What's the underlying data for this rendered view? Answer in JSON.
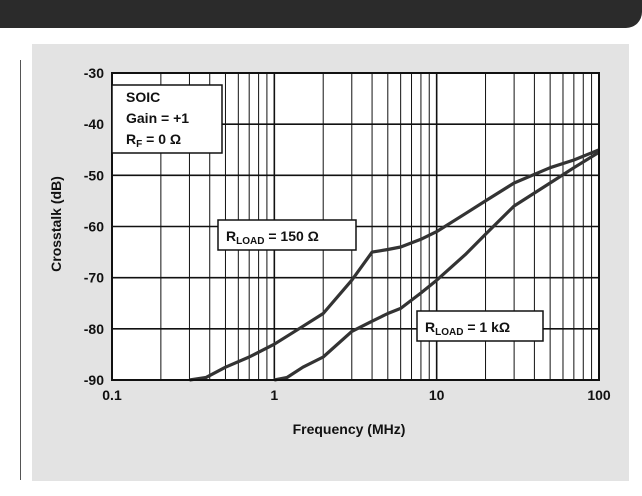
{
  "chart_data": {
    "type": "line",
    "xlabel": "Frequency (MHz)",
    "ylabel": "Crosstalk (dB)",
    "x_scale": "log",
    "xlim": [
      0.1,
      100
    ],
    "ylim": [
      -90,
      -30
    ],
    "x_ticks": [
      "0.1",
      "1",
      "10",
      "100"
    ],
    "y_ticks": [
      "-30",
      "-40",
      "-50",
      "-60",
      "-70",
      "-80",
      "-90"
    ],
    "grid": true,
    "annotation": {
      "line1": "SOIC",
      "line2": "Gain = +1",
      "line3_main": "R",
      "line3_sub": "F",
      "line3_rest": " = 0 Ω"
    },
    "series": [
      {
        "label_main": "R",
        "label_sub": "LOAD",
        "label_rest": " = 150 Ω",
        "color": "#333333",
        "x": [
          0.3,
          0.38,
          0.5,
          0.7,
          1.0,
          1.5,
          2.0,
          3.0,
          4.0,
          5.0,
          6.0,
          8.0,
          10,
          15,
          20,
          30,
          50,
          70,
          100
        ],
        "y": [
          -90,
          -89.5,
          -87.5,
          -85.5,
          -83,
          -79.5,
          -77,
          -70.5,
          -65,
          -64.5,
          -64,
          -62.5,
          -61,
          -57.5,
          -55,
          -51.5,
          -48.5,
          -47,
          -45
        ]
      },
      {
        "label_main": "R",
        "label_sub": "LOAD",
        "label_rest": " = 1 kΩ",
        "color": "#333333",
        "x": [
          1.0,
          1.2,
          1.5,
          2.0,
          3.0,
          4.0,
          5.0,
          6.0,
          8.0,
          10,
          15,
          20,
          30,
          50,
          70,
          100
        ],
        "y": [
          -90,
          -89.5,
          -87.5,
          -85.5,
          -80.5,
          -78.5,
          -77,
          -76,
          -73,
          -70.5,
          -65.5,
          -61.5,
          -56,
          -51.5,
          -48.5,
          -45.5
        ]
      }
    ]
  }
}
